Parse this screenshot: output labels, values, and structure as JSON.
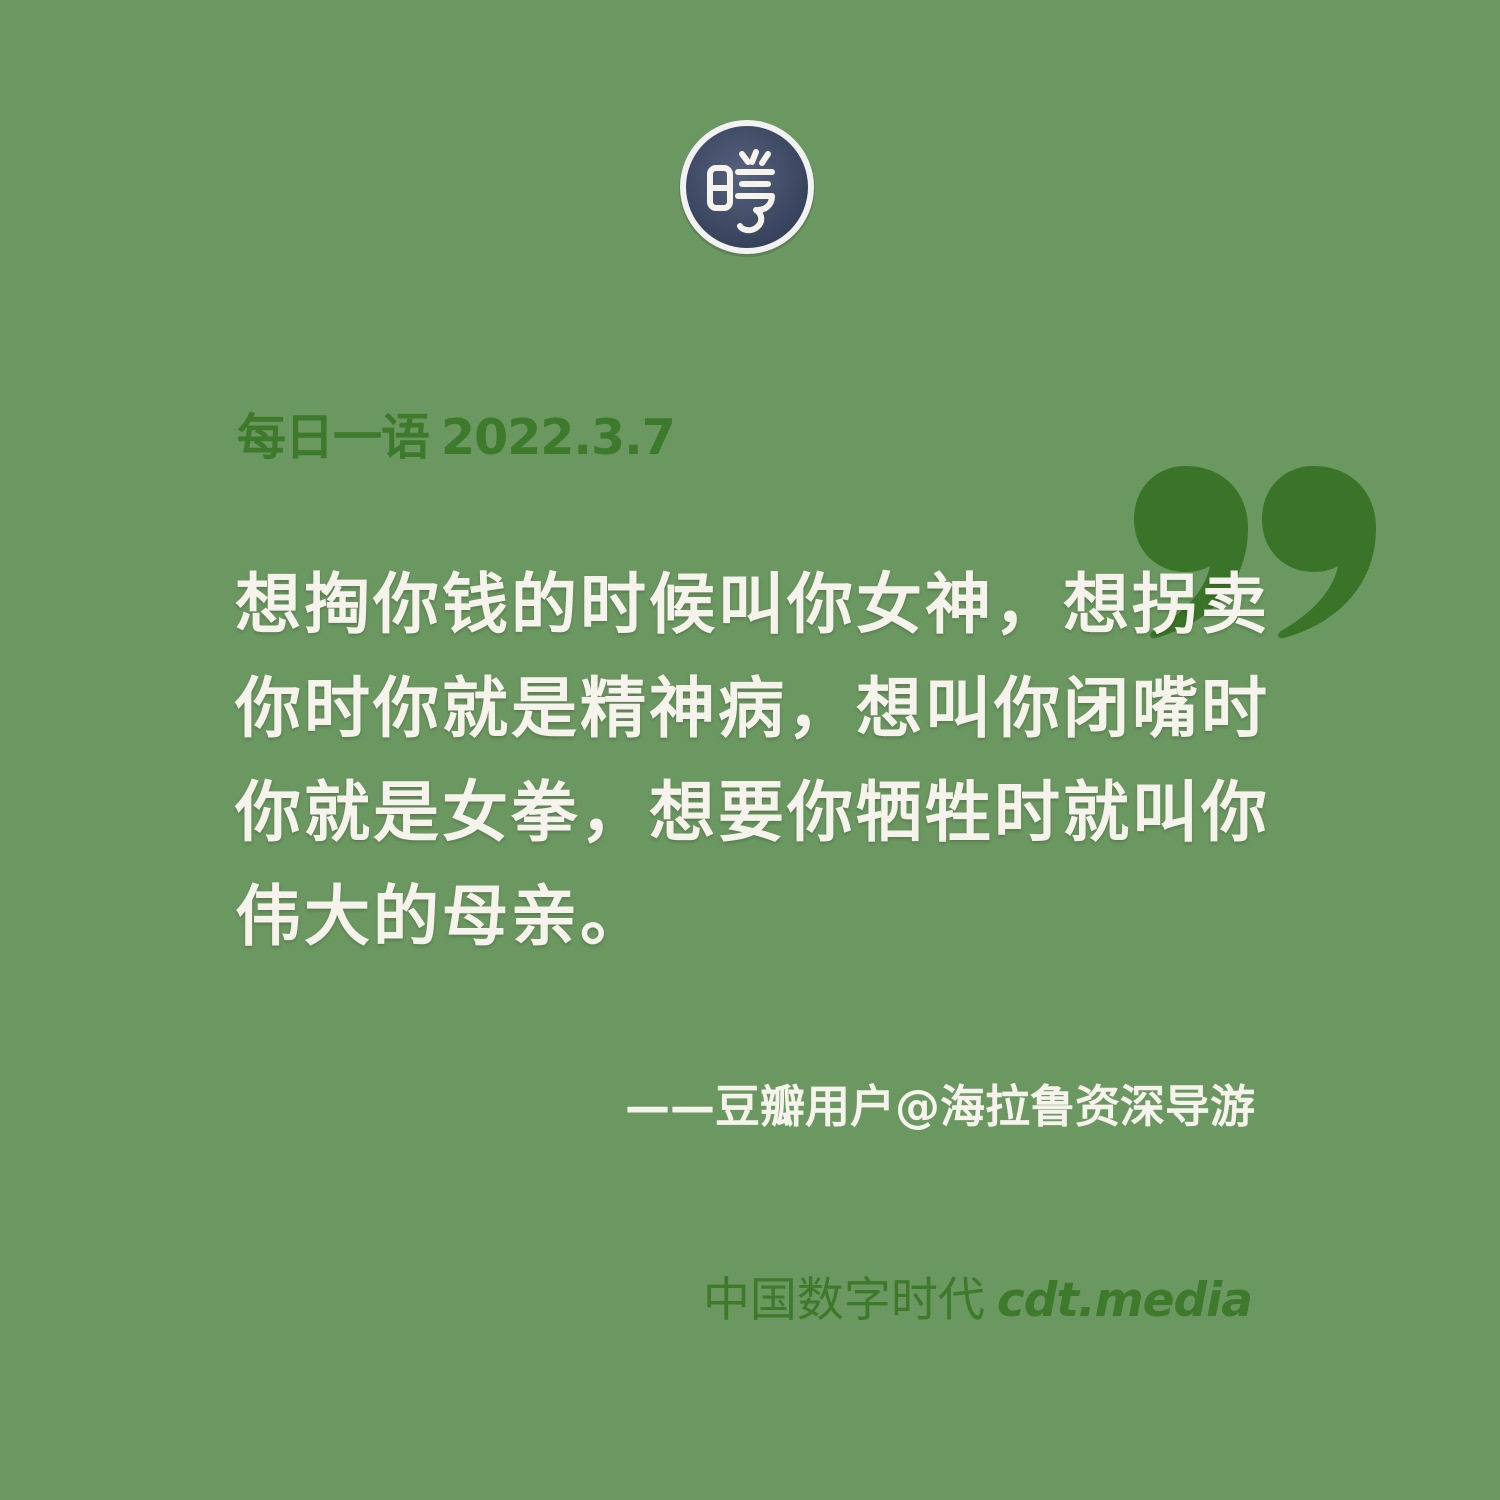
{
  "header": {
    "logo_icon": "cdt-seal-logo-icon",
    "logo_text": "時"
  },
  "card": {
    "label": "每日一语",
    "date": "2022.3.7",
    "quote": "想掏你钱的时候叫你女神，想拐卖你时你就是精神病，想叫你闭嘴时你就是女拳，想要你牺牲时就叫你伟大的母亲。",
    "attribution": "——豆瓣用户@海拉鲁资深导游",
    "quote_mark_icon": "closing-quote-icon"
  },
  "footer": {
    "brand_cn": "中国数字时代",
    "brand_url": "cdt.media"
  },
  "colors": {
    "background": "#6b9760",
    "accent_green": "#3d7a2c",
    "text_light": "#f5f3ec",
    "logo_bg": "#3e4a66"
  }
}
